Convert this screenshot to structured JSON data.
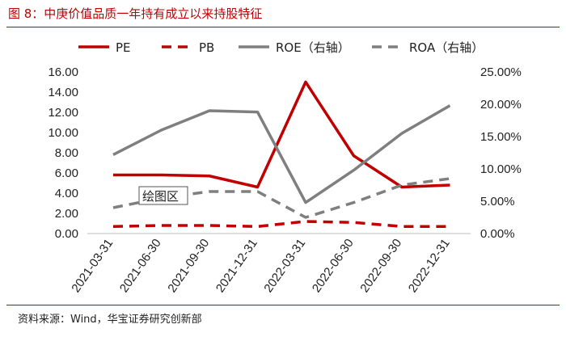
{
  "figure": {
    "title": "图 8：中庚价值品质一年持有成立以来持股特征",
    "source": "资料来源：Wind，华宝证券研究创新部",
    "chart_tooltip": "绘图区"
  },
  "chart_data": {
    "type": "line",
    "categories": [
      "2021-03-31",
      "2021-06-30",
      "2021-09-30",
      "2021-12-31",
      "2022-03-31",
      "2022-06-30",
      "2022-09-30",
      "2022-12-31"
    ],
    "left_axis": {
      "ylim": [
        0,
        16
      ],
      "ticks": [
        "0.00",
        "2.00",
        "4.00",
        "6.00",
        "8.00",
        "10.00",
        "12.00",
        "14.00",
        "16.00"
      ]
    },
    "right_axis": {
      "ylim": [
        0,
        25
      ],
      "ticks": [
        "0.00%",
        "5.00%",
        "10.00%",
        "15.00%",
        "20.00%",
        "25.00%"
      ]
    },
    "series": [
      {
        "name": "PE",
        "axis": "left",
        "color": "#c00000",
        "dash": "solid",
        "values": [
          5.8,
          5.8,
          5.7,
          4.6,
          15.0,
          7.7,
          4.6,
          4.8
        ]
      },
      {
        "name": "PB",
        "axis": "left",
        "color": "#c00000",
        "dash": "dashed",
        "values": [
          0.7,
          0.8,
          0.8,
          0.7,
          1.2,
          1.1,
          0.7,
          0.7
        ]
      },
      {
        "name": "ROE（右轴）",
        "axis": "right",
        "color": "#7f7f7f",
        "dash": "solid",
        "values": [
          12.2,
          16.0,
          19.0,
          18.8,
          4.8,
          9.8,
          15.5,
          19.8
        ]
      },
      {
        "name": "ROA（右轴）",
        "axis": "right",
        "color": "#7f7f7f",
        "dash": "dashed",
        "values": [
          4.0,
          5.5,
          6.5,
          6.5,
          2.5,
          4.8,
          7.5,
          8.5
        ]
      }
    ],
    "grid": false,
    "legend": "top"
  }
}
